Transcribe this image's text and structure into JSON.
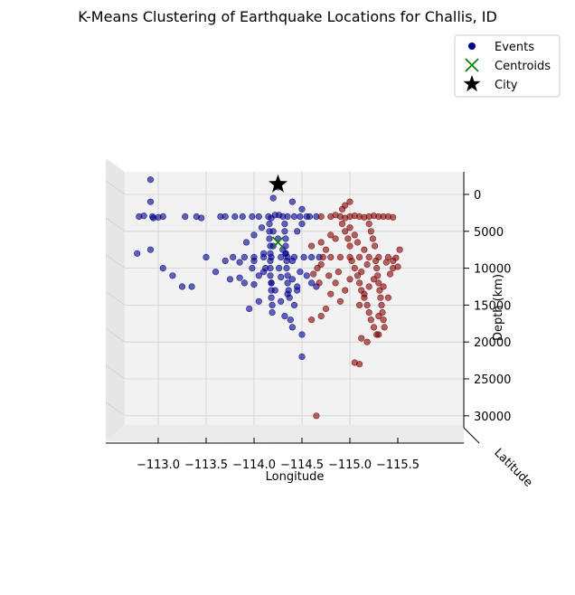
{
  "chart_data": {
    "type": "scatter",
    "title": "K-Means Clustering of Earthquake Locations for Challis, ID",
    "xlabel": "Longitude",
    "ylabel": "Latitude",
    "zlabel": "Depth (km)",
    "x_ticks": [
      "−113.0",
      "−113.5",
      "−114.0",
      "−114.5",
      "−115.0",
      "−115.5"
    ],
    "z_ticks": [
      "0",
      "5000",
      "10000",
      "15000",
      "20000",
      "25000",
      "30000"
    ],
    "xlim": [
      -112.75,
      -115.5
    ],
    "zlim": [
      -32000,
      2500
    ],
    "grid": true,
    "legend_position": "top-right",
    "legend": [
      {
        "label": "Events",
        "marker": "circle",
        "color": "#00008b"
      },
      {
        "label": "Centroids",
        "marker": "x",
        "color": "#008000"
      },
      {
        "label": "City",
        "marker": "star",
        "color": "#000000"
      }
    ],
    "series": [
      {
        "cluster": 0,
        "color": "#00008b",
        "points": [
          [
            -112.92,
            2000
          ],
          [
            -112.94,
            -3000
          ],
          [
            -112.8,
            -3000
          ],
          [
            -113.05,
            -3000
          ],
          [
            -112.95,
            -3200
          ],
          [
            -112.85,
            -2900
          ],
          [
            -113.0,
            -3100
          ],
          [
            -112.92,
            -1000
          ],
          [
            -112.78,
            -8000
          ],
          [
            -112.92,
            -7500
          ],
          [
            -113.05,
            -10000
          ],
          [
            -113.15,
            -11000
          ],
          [
            -113.25,
            -12500
          ],
          [
            -113.35,
            -12500
          ],
          [
            -113.28,
            -3000
          ],
          [
            -113.4,
            -3000
          ],
          [
            -113.45,
            -3200
          ],
          [
            -113.65,
            -3000
          ],
          [
            -113.7,
            -3000
          ],
          [
            -113.5,
            -8500
          ],
          [
            -113.6,
            -10500
          ],
          [
            -113.75,
            -11500
          ],
          [
            -113.85,
            -11300
          ],
          [
            -113.9,
            -12000
          ],
          [
            -114.0,
            -12200
          ],
          [
            -114.05,
            -14500
          ],
          [
            -113.95,
            -15500
          ],
          [
            -114.0,
            -9000
          ],
          [
            -114.1,
            -8000
          ],
          [
            -114.2,
            -7000
          ],
          [
            -114.25,
            -6000
          ],
          [
            -114.3,
            -7500
          ],
          [
            -114.12,
            -10000
          ],
          [
            -114.18,
            -12000
          ],
          [
            -114.22,
            -13000
          ],
          [
            -114.28,
            -14500
          ],
          [
            -114.32,
            -16500
          ],
          [
            -114.38,
            -17000
          ],
          [
            -114.4,
            -18000
          ],
          [
            -114.5,
            -19000
          ],
          [
            -114.5,
            -22000
          ],
          [
            -114.42,
            -15000
          ],
          [
            -114.35,
            -13500
          ],
          [
            -114.45,
            -12500
          ],
          [
            -114.48,
            -10500
          ],
          [
            -114.55,
            -11000
          ],
          [
            -114.6,
            -12000
          ],
          [
            -114.65,
            -12500
          ],
          [
            -114.4,
            -9000
          ],
          [
            -114.33,
            -8000
          ],
          [
            -114.2,
            -5000
          ],
          [
            -114.08,
            -4500
          ],
          [
            -114.0,
            -5500
          ],
          [
            -113.92,
            -6500
          ],
          [
            -114.45,
            -5000
          ],
          [
            -114.5,
            -4000
          ],
          [
            -114.55,
            -3000
          ],
          [
            -114.5,
            -2000
          ],
          [
            -114.4,
            -1000
          ],
          [
            -114.25,
            1000
          ],
          [
            -114.2,
            -500
          ],
          [
            -114.22,
            -2800
          ],
          [
            -113.8,
            -3000
          ],
          [
            -113.88,
            -3000
          ],
          [
            -113.98,
            -3000
          ],
          [
            -114.05,
            -3000
          ],
          [
            -114.15,
            -3000
          ],
          [
            -114.3,
            -3000
          ],
          [
            -114.35,
            -3000
          ],
          [
            -114.42,
            -3000
          ],
          [
            -114.48,
            -3000
          ],
          [
            -114.58,
            -3000
          ],
          [
            -114.65,
            -3000
          ],
          [
            -114.18,
            -3200
          ],
          [
            -114.26,
            -2800
          ],
          [
            -113.78,
            -8500
          ],
          [
            -113.9,
            -8500
          ],
          [
            -114.0,
            -8500
          ],
          [
            -114.1,
            -8500
          ],
          [
            -114.18,
            -8500
          ],
          [
            -114.28,
            -8500
          ],
          [
            -114.35,
            -8500
          ],
          [
            -114.42,
            -8500
          ],
          [
            -114.52,
            -8500
          ],
          [
            -114.6,
            -8500
          ],
          [
            -114.68,
            -8500
          ],
          [
            -114.16,
            -4000
          ],
          [
            -114.16,
            -5000
          ],
          [
            -114.16,
            -6000
          ],
          [
            -114.17,
            -7000
          ],
          [
            -114.17,
            -8000
          ],
          [
            -114.17,
            -9000
          ],
          [
            -114.17,
            -10000
          ],
          [
            -114.17,
            -11000
          ],
          [
            -114.18,
            -12000
          ],
          [
            -114.18,
            -13000
          ],
          [
            -114.18,
            -14000
          ],
          [
            -114.19,
            -15000
          ],
          [
            -114.19,
            -16000
          ],
          [
            -114.32,
            -4000
          ],
          [
            -114.32,
            -5000
          ],
          [
            -114.33,
            -6000
          ],
          [
            -114.33,
            -7000
          ],
          [
            -114.33,
            -8000
          ],
          [
            -114.34,
            -9000
          ],
          [
            -114.34,
            -10000
          ],
          [
            -114.35,
            -11000
          ],
          [
            -114.35,
            -12000
          ],
          [
            -114.36,
            -13000
          ],
          [
            -114.37,
            -14000
          ],
          [
            -114.1,
            -10500
          ],
          [
            -114.05,
            -11000
          ],
          [
            -113.98,
            -10000
          ],
          [
            -114.26,
            -10000
          ],
          [
            -114.28,
            -11200
          ],
          [
            -114.4,
            -11500
          ],
          [
            -114.45,
            -13000
          ],
          [
            -113.85,
            -9200
          ],
          [
            -113.7,
            -9000
          ]
        ]
      },
      {
        "cluster": 1,
        "color": "#800000",
        "points": [
          [
            -114.7,
            -3000
          ],
          [
            -114.8,
            -3000
          ],
          [
            -114.9,
            -3000
          ],
          [
            -115.0,
            -3000
          ],
          [
            -115.1,
            -3000
          ],
          [
            -115.2,
            -3000
          ],
          [
            -115.3,
            -3000
          ],
          [
            -115.4,
            -3000
          ],
          [
            -115.45,
            -3100
          ],
          [
            -114.85,
            -2800
          ],
          [
            -114.95,
            -3200
          ],
          [
            -115.05,
            -2900
          ],
          [
            -115.15,
            -3100
          ],
          [
            -115.25,
            -2900
          ],
          [
            -115.35,
            -3000
          ],
          [
            -114.72,
            -8500
          ],
          [
            -114.8,
            -8500
          ],
          [
            -114.9,
            -8500
          ],
          [
            -115.0,
            -8500
          ],
          [
            -115.1,
            -8500
          ],
          [
            -115.2,
            -8500
          ],
          [
            -115.3,
            -8500
          ],
          [
            -115.4,
            -8500
          ],
          [
            -115.48,
            -8600
          ],
          [
            -114.6,
            -7000
          ],
          [
            -114.75,
            -7500
          ],
          [
            -115.52,
            -7500
          ],
          [
            -115.5,
            -9800
          ],
          [
            -115.45,
            -10000
          ],
          [
            -114.92,
            -2000
          ],
          [
            -115.0,
            -1000
          ],
          [
            -114.95,
            -1500
          ],
          [
            -114.92,
            -4000
          ],
          [
            -114.95,
            -5000
          ],
          [
            -114.98,
            -6000
          ],
          [
            -115.0,
            -7000
          ],
          [
            -115.02,
            -9000
          ],
          [
            -115.05,
            -10000
          ],
          [
            -115.08,
            -11000
          ],
          [
            -115.1,
            -12000
          ],
          [
            -115.12,
            -13000
          ],
          [
            -115.15,
            -14000
          ],
          [
            -115.18,
            -15000
          ],
          [
            -115.2,
            -16000
          ],
          [
            -115.22,
            -17000
          ],
          [
            -115.25,
            -18000
          ],
          [
            -115.28,
            -19000
          ],
          [
            -115.18,
            -20000
          ],
          [
            -115.12,
            -19500
          ],
          [
            -115.2,
            -4000
          ],
          [
            -115.22,
            -5000
          ],
          [
            -115.24,
            -6000
          ],
          [
            -115.26,
            -7000
          ],
          [
            -115.27,
            -9000
          ],
          [
            -115.28,
            -10000
          ],
          [
            -115.29,
            -11000
          ],
          [
            -115.3,
            -12000
          ],
          [
            -115.31,
            -13000
          ],
          [
            -115.32,
            -14000
          ],
          [
            -115.33,
            -15000
          ],
          [
            -115.34,
            -16000
          ],
          [
            -115.35,
            -17000
          ],
          [
            -115.36,
            -18000
          ],
          [
            -115.3,
            -19000
          ],
          [
            -115.1,
            -23000
          ],
          [
            -115.05,
            -22800
          ],
          [
            -114.65,
            -30000
          ],
          [
            -114.88,
            -10500
          ],
          [
            -114.85,
            -12000
          ],
          [
            -114.8,
            -13500
          ],
          [
            -114.75,
            -15500
          ],
          [
            -114.7,
            -16500
          ],
          [
            -114.6,
            -17000
          ],
          [
            -114.78,
            -11000
          ],
          [
            -114.68,
            -12000
          ],
          [
            -114.62,
            -10800
          ],
          [
            -114.9,
            -14500
          ],
          [
            -114.95,
            -13000
          ],
          [
            -115.0,
            -11500
          ],
          [
            -114.7,
            -6500
          ],
          [
            -114.8,
            -5500
          ],
          [
            -114.85,
            -6000
          ],
          [
            -115.0,
            -4500
          ],
          [
            -115.05,
            -5500
          ],
          [
            -115.08,
            -6500
          ],
          [
            -115.15,
            -7500
          ],
          [
            -115.18,
            -9500
          ],
          [
            -115.12,
            -10500
          ],
          [
            -115.4,
            -14000
          ],
          [
            -115.35,
            -12500
          ],
          [
            -115.42,
            -10800
          ],
          [
            -115.25,
            -11500
          ],
          [
            -115.2,
            -12500
          ],
          [
            -115.15,
            -13500
          ],
          [
            -115.1,
            -15000
          ],
          [
            -115.3,
            -16500
          ],
          [
            -115.38,
            -9200
          ],
          [
            -115.45,
            -9000
          ],
          [
            -114.7,
            -9500
          ],
          [
            -114.66,
            -10000
          ]
        ]
      }
    ],
    "centroids": [
      {
        "x": -114.25,
        "z": -6500,
        "color": "#008000"
      }
    ],
    "city": {
      "x": -114.25,
      "z": 1500,
      "color": "#000000"
    }
  }
}
